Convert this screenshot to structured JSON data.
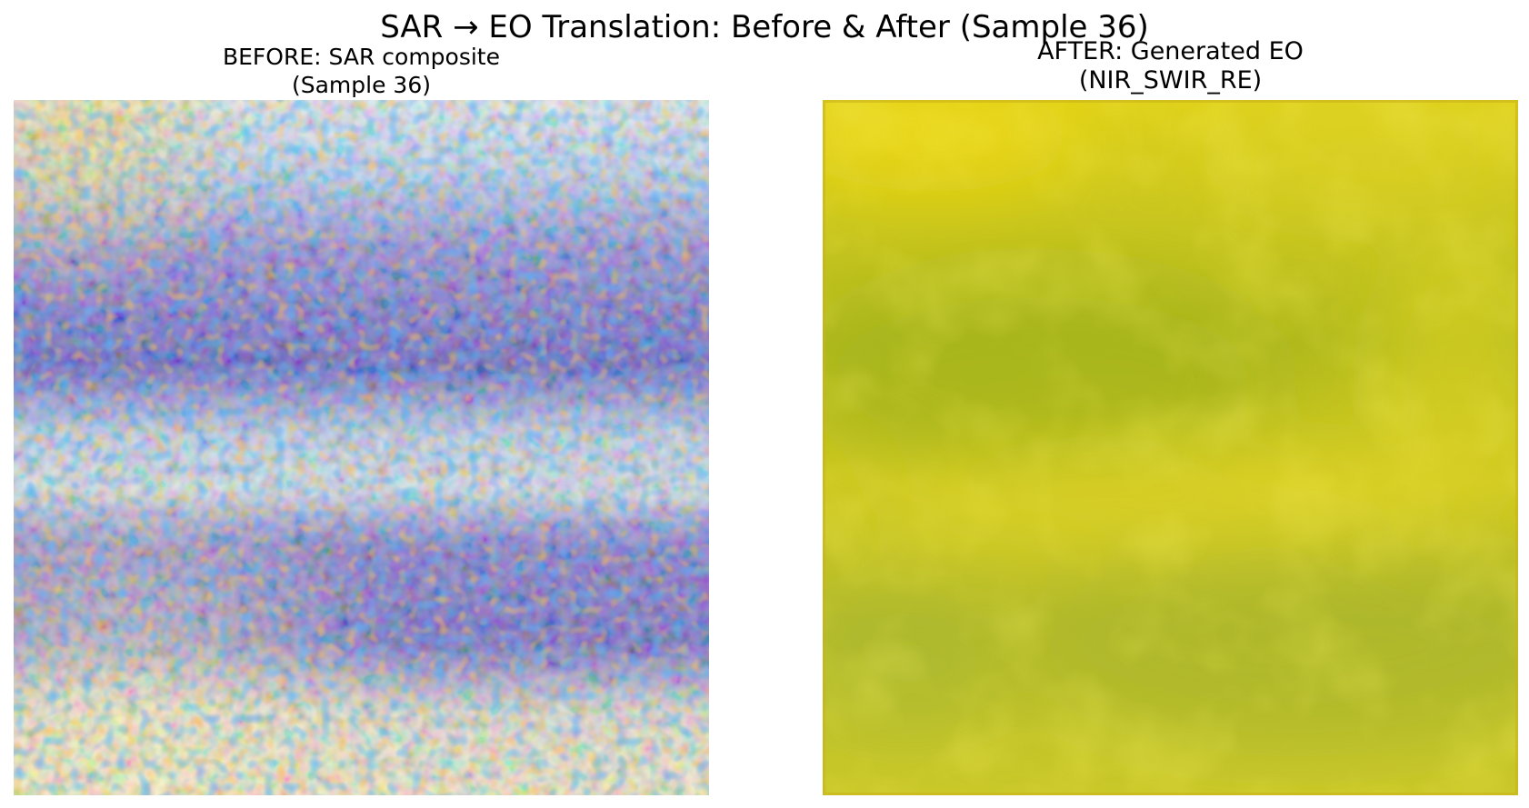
{
  "figure": {
    "title": "SAR → EO Translation: Before & After (Sample 36)"
  },
  "panels": {
    "before": {
      "title_line1": "BEFORE: SAR composite",
      "title_line2": "(Sample 36)"
    },
    "after": {
      "title_line1": "AFTER: Generated EO",
      "title_line2": "(NIR_SWIR_RE)"
    }
  },
  "colors": {
    "sar_bright": "#f7e27a",
    "sar_light_blue": "#a8dcef",
    "sar_blue": "#1f73e0",
    "sar_purple": "#6b1fa6",
    "sar_orange": "#e8701a",
    "eo_yellow": "#e3d51a",
    "eo_olive": "#a9b81e",
    "eo_green": "#9cb33a"
  }
}
